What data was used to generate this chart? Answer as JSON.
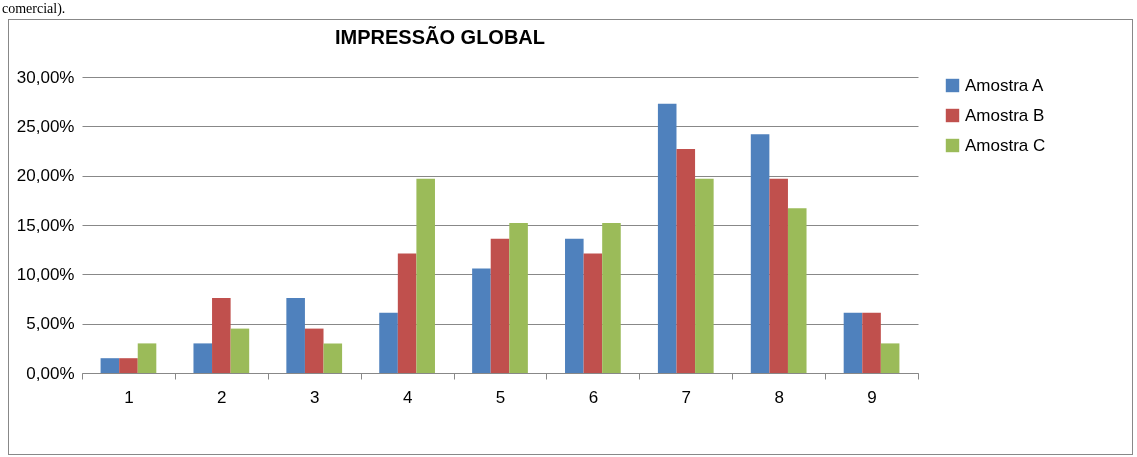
{
  "chart_data": {
    "type": "bar",
    "title": "IMPRESSÃO GLOBAL",
    "annotations": [
      "comercial)."
    ],
    "categories": [
      "1",
      "2",
      "3",
      "4",
      "5",
      "6",
      "7",
      "8",
      "9"
    ],
    "series": [
      {
        "name": "Amostra A",
        "color": "#4f81bd",
        "values": [
          1.5,
          3.0,
          7.6,
          6.1,
          10.6,
          13.6,
          27.3,
          24.2,
          6.1
        ]
      },
      {
        "name": "Amostra B",
        "color": "#c0504d",
        "values": [
          1.5,
          7.6,
          4.5,
          12.1,
          13.6,
          12.1,
          22.7,
          19.7,
          6.1
        ]
      },
      {
        "name": "Amostra C",
        "color": "#9bbb59",
        "values": [
          3.0,
          4.5,
          3.0,
          19.7,
          15.2,
          15.2,
          19.7,
          16.7,
          3.0
        ]
      }
    ],
    "ylim": [
      0,
      30
    ],
    "yticks": [
      {
        "value": 0,
        "label": "0,00%"
      },
      {
        "value": 5,
        "label": "5,00%"
      },
      {
        "value": 10,
        "label": "10,00%"
      },
      {
        "value": 15,
        "label": "15,00%"
      },
      {
        "value": 20,
        "label": "20,00%"
      },
      {
        "value": 25,
        "label": "25,00%"
      },
      {
        "value": 30,
        "label": "30,00%"
      }
    ],
    "grid": "y",
    "legend": "right"
  }
}
